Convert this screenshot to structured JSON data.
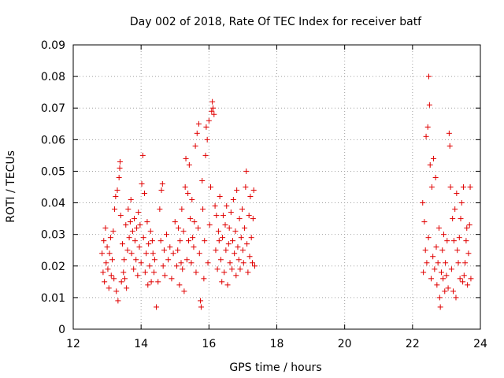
{
  "chart_data": {
    "type": "scatter",
    "title": "Day 002 of 2018, Rate Of TEC Index for receiver batf",
    "xlabel": "GPS time / hours",
    "ylabel": "ROTI / TECUs",
    "xlim": [
      12,
      24
    ],
    "ylim": [
      0,
      0.09
    ],
    "xticks": [
      12,
      14,
      16,
      18,
      20,
      22,
      24
    ],
    "xtick_labels": [
      "12",
      "14",
      "16",
      "18",
      "20",
      "22",
      "24"
    ],
    "yticks": [
      0,
      0.01,
      0.02,
      0.03,
      0.04,
      0.05,
      0.06,
      0.07,
      0.08,
      0.09
    ],
    "ytick_labels": [
      "0",
      "0.01",
      "0.02",
      "0.03",
      "0.04",
      "0.05",
      "0.06",
      "0.07",
      "0.08",
      "0.09"
    ],
    "grid": true,
    "marker": "+",
    "marker_color": "#e00000",
    "series": [
      {
        "name": "ROTI",
        "points": [
          [
            12.85,
            0.024
          ],
          [
            12.88,
            0.018
          ],
          [
            12.9,
            0.028
          ],
          [
            12.92,
            0.015
          ],
          [
            12.95,
            0.032
          ],
          [
            12.97,
            0.021
          ],
          [
            13.0,
            0.026
          ],
          [
            13.02,
            0.019
          ],
          [
            13.05,
            0.013
          ],
          [
            13.07,
            0.024
          ],
          [
            13.1,
            0.029
          ],
          [
            13.12,
            0.017
          ],
          [
            13.15,
            0.022
          ],
          [
            13.18,
            0.031
          ],
          [
            13.2,
            0.016
          ],
          [
            13.22,
            0.038
          ],
          [
            13.25,
            0.042
          ],
          [
            13.27,
            0.012
          ],
          [
            13.3,
            0.044
          ],
          [
            13.32,
            0.009
          ],
          [
            13.35,
            0.048
          ],
          [
            13.37,
            0.051
          ],
          [
            13.38,
            0.053
          ],
          [
            13.4,
            0.036
          ],
          [
            13.42,
            0.015
          ],
          [
            13.45,
            0.027
          ],
          [
            13.48,
            0.018
          ],
          [
            13.5,
            0.022
          ],
          [
            13.52,
            0.016
          ],
          [
            13.55,
            0.033
          ],
          [
            13.57,
            0.013
          ],
          [
            13.6,
            0.025
          ],
          [
            13.62,
            0.038
          ],
          [
            13.65,
            0.029
          ],
          [
            13.68,
            0.034
          ],
          [
            13.7,
            0.041
          ],
          [
            13.72,
            0.024
          ],
          [
            13.75,
            0.031
          ],
          [
            13.78,
            0.019
          ],
          [
            13.8,
            0.035
          ],
          [
            13.82,
            0.028
          ],
          [
            13.85,
            0.022
          ],
          [
            13.87,
            0.032
          ],
          [
            13.9,
            0.017
          ],
          [
            13.92,
            0.037
          ],
          [
            13.95,
            0.026
          ],
          [
            13.97,
            0.033
          ],
          [
            14.0,
            0.021
          ],
          [
            14.02,
            0.046
          ],
          [
            14.05,
            0.055
          ],
          [
            14.07,
            0.029
          ],
          [
            14.1,
            0.043
          ],
          [
            14.12,
            0.018
          ],
          [
            14.15,
            0.024
          ],
          [
            14.18,
            0.034
          ],
          [
            14.2,
            0.014
          ],
          [
            14.22,
            0.027
          ],
          [
            14.25,
            0.02
          ],
          [
            14.28,
            0.031
          ],
          [
            14.3,
            0.015
          ],
          [
            14.33,
            0.028
          ],
          [
            14.35,
            0.024
          ],
          [
            14.38,
            0.018
          ],
          [
            14.4,
            0.022
          ],
          [
            14.45,
            0.007
          ],
          [
            14.5,
            0.015
          ],
          [
            14.55,
            0.038
          ],
          [
            14.58,
            0.028
          ],
          [
            14.6,
            0.044
          ],
          [
            14.63,
            0.046
          ],
          [
            14.65,
            0.02
          ],
          [
            14.68,
            0.025
          ],
          [
            14.7,
            0.017
          ],
          [
            14.75,
            0.03
          ],
          [
            14.8,
            0.022
          ],
          [
            14.85,
            0.026
          ],
          [
            14.9,
            0.016
          ],
          [
            14.95,
            0.024
          ],
          [
            15.0,
            0.034
          ],
          [
            15.05,
            0.02
          ],
          [
            15.08,
            0.025
          ],
          [
            15.1,
            0.032
          ],
          [
            15.13,
            0.014
          ],
          [
            15.15,
            0.028
          ],
          [
            15.18,
            0.021
          ],
          [
            15.2,
            0.038
          ],
          [
            15.22,
            0.019
          ],
          [
            15.25,
            0.031
          ],
          [
            15.27,
            0.012
          ],
          [
            15.3,
            0.045
          ],
          [
            15.32,
            0.054
          ],
          [
            15.35,
            0.022
          ],
          [
            15.38,
            0.043
          ],
          [
            15.4,
            0.028
          ],
          [
            15.42,
            0.052
          ],
          [
            15.45,
            0.035
          ],
          [
            15.48,
            0.021
          ],
          [
            15.5,
            0.041
          ],
          [
            15.52,
            0.029
          ],
          [
            15.55,
            0.026
          ],
          [
            15.57,
            0.034
          ],
          [
            15.6,
            0.058
          ],
          [
            15.62,
            0.018
          ],
          [
            15.65,
            0.062
          ],
          [
            15.68,
            0.032
          ],
          [
            15.7,
            0.065
          ],
          [
            15.72,
            0.024
          ],
          [
            15.75,
            0.009
          ],
          [
            15.77,
            0.007
          ],
          [
            15.8,
            0.047
          ],
          [
            15.82,
            0.038
          ],
          [
            15.85,
            0.016
          ],
          [
            15.87,
            0.028
          ],
          [
            15.9,
            0.055
          ],
          [
            15.92,
            0.064
          ],
          [
            15.95,
            0.06
          ],
          [
            15.97,
            0.021
          ],
          [
            16.0,
            0.066
          ],
          [
            16.02,
            0.033
          ],
          [
            16.05,
            0.045
          ],
          [
            16.08,
            0.069
          ],
          [
            16.1,
            0.072
          ],
          [
            16.12,
            0.07
          ],
          [
            16.15,
            0.068
          ],
          [
            16.18,
            0.039
          ],
          [
            16.2,
            0.025
          ],
          [
            16.22,
            0.036
          ],
          [
            16.25,
            0.019
          ],
          [
            16.28,
            0.031
          ],
          [
            16.3,
            0.028
          ],
          [
            16.32,
            0.042
          ],
          [
            16.35,
            0.022
          ],
          [
            16.38,
            0.015
          ],
          [
            16.4,
            0.029
          ],
          [
            16.42,
            0.036
          ],
          [
            16.45,
            0.018
          ],
          [
            16.48,
            0.033
          ],
          [
            16.5,
            0.025
          ],
          [
            16.52,
            0.039
          ],
          [
            16.55,
            0.014
          ],
          [
            16.58,
            0.027
          ],
          [
            16.6,
            0.032
          ],
          [
            16.62,
            0.021
          ],
          [
            16.65,
            0.037
          ],
          [
            16.68,
            0.019
          ],
          [
            16.7,
            0.028
          ],
          [
            16.72,
            0.041
          ],
          [
            16.75,
            0.024
          ],
          [
            16.78,
            0.031
          ],
          [
            16.8,
            0.017
          ],
          [
            16.82,
            0.044
          ],
          [
            16.85,
            0.026
          ],
          [
            16.88,
            0.022
          ],
          [
            16.9,
            0.035
          ],
          [
            16.92,
            0.019
          ],
          [
            16.95,
            0.029
          ],
          [
            16.98,
            0.038
          ],
          [
            17.0,
            0.025
          ],
          [
            17.02,
            0.021
          ],
          [
            17.05,
            0.032
          ],
          [
            17.08,
            0.045
          ],
          [
            17.1,
            0.05
          ],
          [
            17.12,
            0.027
          ],
          [
            17.15,
            0.018
          ],
          [
            17.18,
            0.036
          ],
          [
            17.2,
            0.023
          ],
          [
            17.22,
            0.042
          ],
          [
            17.25,
            0.029
          ],
          [
            17.28,
            0.021
          ],
          [
            17.3,
            0.035
          ],
          [
            17.32,
            0.044
          ],
          [
            17.35,
            0.02
          ],
          [
            22.3,
            0.04
          ],
          [
            22.32,
            0.018
          ],
          [
            22.35,
            0.034
          ],
          [
            22.38,
            0.025
          ],
          [
            22.4,
            0.061
          ],
          [
            22.42,
            0.021
          ],
          [
            22.45,
            0.064
          ],
          [
            22.47,
            0.029
          ],
          [
            22.48,
            0.08
          ],
          [
            22.5,
            0.071
          ],
          [
            22.52,
            0.052
          ],
          [
            22.55,
            0.016
          ],
          [
            22.57,
            0.045
          ],
          [
            22.6,
            0.023
          ],
          [
            22.62,
            0.054
          ],
          [
            22.65,
            0.019
          ],
          [
            22.68,
            0.048
          ],
          [
            22.7,
            0.026
          ],
          [
            22.72,
            0.014
          ],
          [
            22.75,
            0.021
          ],
          [
            22.78,
            0.032
          ],
          [
            22.8,
            0.01
          ],
          [
            22.82,
            0.007
          ],
          [
            22.85,
            0.018
          ],
          [
            22.88,
            0.025
          ],
          [
            22.9,
            0.016
          ],
          [
            22.92,
            0.03
          ],
          [
            22.95,
            0.012
          ],
          [
            22.97,
            0.021
          ],
          [
            23.0,
            0.017
          ],
          [
            23.02,
            0.028
          ],
          [
            23.05,
            0.013
          ],
          [
            23.08,
            0.062
          ],
          [
            23.1,
            0.058
          ],
          [
            23.12,
            0.045
          ],
          [
            23.15,
            0.019
          ],
          [
            23.18,
            0.035
          ],
          [
            23.2,
            0.012
          ],
          [
            23.22,
            0.028
          ],
          [
            23.25,
            0.038
          ],
          [
            23.28,
            0.01
          ],
          [
            23.3,
            0.043
          ],
          [
            23.32,
            0.025
          ],
          [
            23.35,
            0.021
          ],
          [
            23.38,
            0.029
          ],
          [
            23.4,
            0.016
          ],
          [
            23.42,
            0.035
          ],
          [
            23.45,
            0.04
          ],
          [
            23.48,
            0.015
          ],
          [
            23.5,
            0.045
          ],
          [
            23.52,
            0.017
          ],
          [
            23.55,
            0.021
          ],
          [
            23.58,
            0.028
          ],
          [
            23.6,
            0.032
          ],
          [
            23.62,
            0.014
          ],
          [
            23.65,
            0.024
          ],
          [
            23.68,
            0.033
          ],
          [
            23.7,
            0.045
          ],
          [
            23.72,
            0.016
          ]
        ]
      }
    ]
  }
}
